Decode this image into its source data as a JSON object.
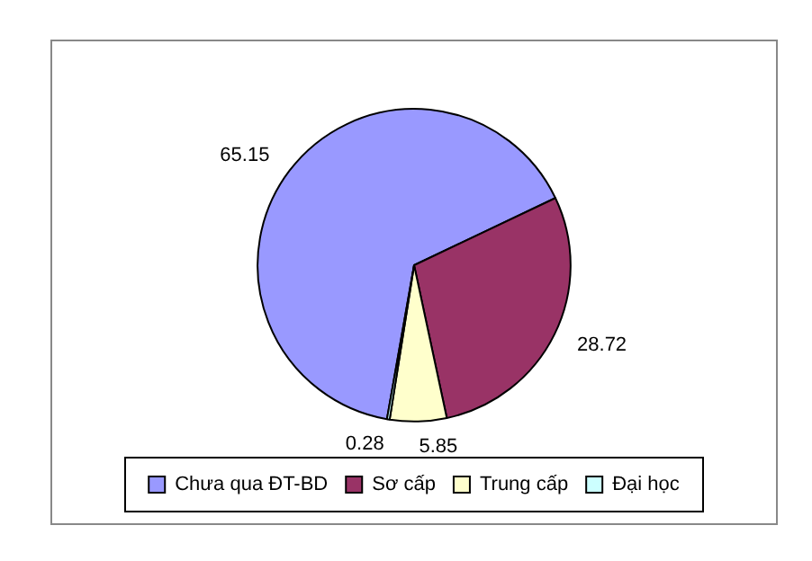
{
  "chart_data": {
    "type": "pie",
    "categories": [
      "Chưa qua ĐT-BD",
      "Sơ cấp",
      "Trung cấp",
      "Đại học"
    ],
    "values": [
      65.15,
      28.72,
      5.85,
      0.28
    ],
    "colors": [
      "#9999ff",
      "#993366",
      "#ffffcc",
      "#ccffff"
    ],
    "data_labels": true,
    "legend": "bottom"
  }
}
